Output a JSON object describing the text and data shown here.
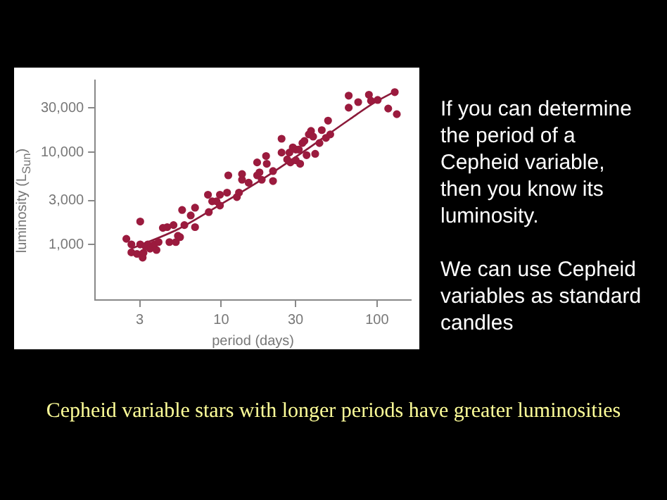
{
  "chart_data": {
    "type": "scatter",
    "xlabel": "period (days)",
    "ylabel": "luminosity (L$_{Sun}$)",
    "log": "xy",
    "grid": false,
    "legend": false,
    "marker": "circle",
    "xlim": [
      1.55,
      165
    ],
    "xticks": [
      3,
      10,
      30,
      100
    ],
    "ylim": [
      250,
      60000
    ],
    "yticks": [
      {
        "value": 1000,
        "label": "1,000"
      },
      {
        "value": 3000,
        "label": "3,000"
      },
      {
        "value": 10000,
        "label": "10,000"
      },
      {
        "value": 30000,
        "label": "30,000"
      }
    ],
    "series": [
      {
        "color": "#9b1b3e",
        "x": [
          2.46,
          2.65,
          2.65,
          2.88,
          3.02,
          3.02,
          3.13,
          3.17,
          3.27,
          3.38,
          3.49,
          3.72,
          3.84,
          3.96,
          4.22,
          4.5,
          4.65,
          4.94,
          5.11,
          5.27,
          5.44,
          5.61,
          5.8,
          6.37,
          6.79,
          6.79,
          8.22,
          8.32,
          8.75,
          9.33,
          9.81,
          9.81,
          10.9,
          11.1,
          12.6,
          13.0,
          13.6,
          13.6,
          15.0,
          17.0,
          17.0,
          17.6,
          18.2,
          19.4,
          19.6,
          21.5,
          21.5,
          24.4,
          24.4,
          26.5,
          27.4,
          27.8,
          28.8,
          30.1,
          30.1,
          31.5,
          32.1,
          33.2,
          34.2,
          35.3,
          36.5,
          37.7,
          38.9,
          40.1,
          42.7,
          44.2,
          47.0,
          48.5,
          50.1,
          65.8,
          65.8,
          75.7,
          88.7,
          91.5,
          101,
          118,
          130,
          134
        ],
        "values": [
          1150,
          1000,
          820,
          790,
          1770,
          1000,
          720,
          810,
          950,
          1000,
          900,
          1000,
          870,
          1060,
          1510,
          1540,
          1060,
          1620,
          1060,
          1240,
          1200,
          2360,
          1620,
          2060,
          2500,
          1540,
          3450,
          2240,
          2930,
          2930,
          2640,
          3450,
          3640,
          5600,
          3260,
          3640,
          5020,
          5780,
          4660,
          7730,
          5600,
          6030,
          5020,
          9080,
          7480,
          6230,
          4860,
          13960,
          9890,
          8330,
          9890,
          7730,
          11250,
          10660,
          8150,
          10660,
          7480,
          12530,
          13220,
          9270,
          15550,
          16950,
          14730,
          9580,
          12530,
          17310,
          14260,
          21930,
          15550,
          40900,
          30300,
          34800,
          41800,
          35970,
          36740,
          29650,
          44670,
          25760
        ]
      },
      {
        "type": "line",
        "color": "#8b1a3a",
        "marker": "none",
        "x": [
          2.65,
          5.27,
          9.94,
          18.7,
          35.3,
          66.7,
          97.5,
          134
        ],
        "values": [
          900,
          1460,
          2720,
          5190,
          10660,
          22650,
          34830,
          46560
        ]
      }
    ],
    "annotations": [
      "If you can determine the period of a Cepheid variable, then you know its luminosity.",
      "We can use Cepheid variables as standard candles",
      "Cepheid variable stars with longer periods have greater luminosities"
    ]
  }
}
